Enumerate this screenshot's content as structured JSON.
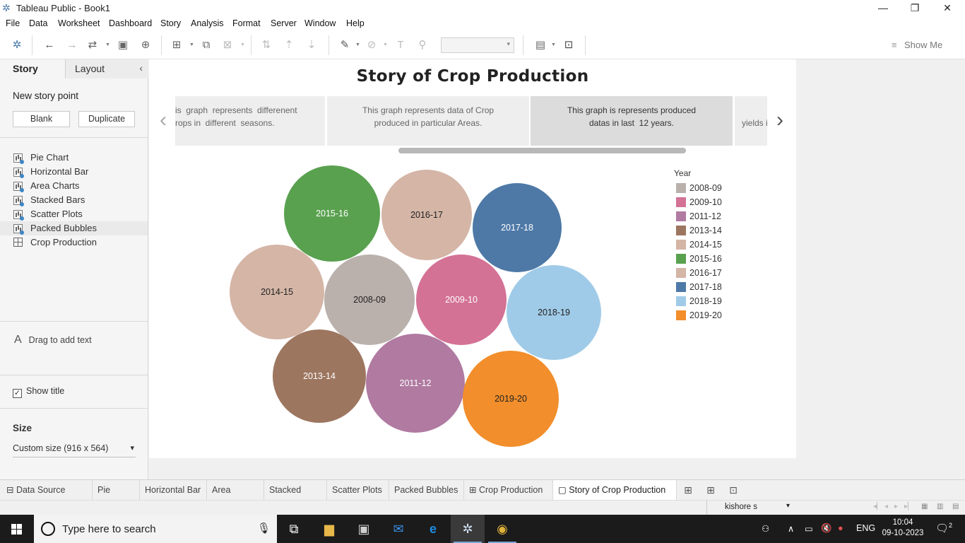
{
  "window": {
    "title": "Tableau Public - Book1",
    "minimize": "—",
    "restore": "❐",
    "close": "✕"
  },
  "menu": [
    "File",
    "Data",
    "Worksheet",
    "Dashboard",
    "Story",
    "Analysis",
    "Format",
    "Server",
    "Window",
    "Help"
  ],
  "toolbar": {
    "show_me": "Show Me"
  },
  "left_pane": {
    "tab_story": "Story",
    "tab_layout": "Layout",
    "new_story_point": "New story point",
    "blank_button": "Blank",
    "duplicate_button": "Duplicate",
    "sheets": [
      {
        "label": "Pie Chart",
        "type": "sheet"
      },
      {
        "label": "Horizontal Bar",
        "type": "sheet"
      },
      {
        "label": "Area Charts",
        "type": "sheet"
      },
      {
        "label": "Stacked Bars",
        "type": "sheet"
      },
      {
        "label": "Scatter Plots",
        "type": "sheet"
      },
      {
        "label": "Packed Bubbles",
        "type": "sheet"
      },
      {
        "label": "Crop Production",
        "type": "dashboard"
      }
    ],
    "drag_text": "Drag to add text",
    "show_title": "Show title",
    "size_heading": "Size",
    "size_value": "Custom size (916 x 564)"
  },
  "story": {
    "title": "Story of  Crop Production",
    "points": [
      "is  graph  represents  differenent\nrops in  different  seasons.",
      "This graph represents data of Crop\nproduced in particular Areas.",
      "This graph is represents produced\ndatas in last  12 years.",
      "yields i"
    ],
    "current_point_index": 2
  },
  "chart_data": {
    "type": "packed-bubbles",
    "legend_title": "Year",
    "bubbles": [
      {
        "label": "2015-16",
        "color": "#59a14f",
        "text_color": "#ffffff"
      },
      {
        "label": "2016-17",
        "color": "#d4b5a6",
        "text_color": "#222222"
      },
      {
        "label": "2017-18",
        "color": "#4e79a7",
        "text_color": "#ffffff"
      },
      {
        "label": "2014-15",
        "color": "#d4b5a6",
        "text_color": "#222222"
      },
      {
        "label": "2008-09",
        "color": "#bab0ac",
        "text_color": "#222222"
      },
      {
        "label": "2009-10",
        "color": "#d37295",
        "text_color": "#ffffff"
      },
      {
        "label": "2018-19",
        "color": "#a0cbe8",
        "text_color": "#222222"
      },
      {
        "label": "2013-14",
        "color": "#9d7660",
        "text_color": "#ffffff"
      },
      {
        "label": "2011-12",
        "color": "#b07aa1",
        "text_color": "#ffffff"
      },
      {
        "label": "2019-20",
        "color": "#f28e2b",
        "text_color": "#222222"
      }
    ],
    "legend": [
      {
        "label": "2008-09",
        "color": "#bab0ac"
      },
      {
        "label": "2009-10",
        "color": "#d37295"
      },
      {
        "label": "2011-12",
        "color": "#b07aa1"
      },
      {
        "label": "2013-14",
        "color": "#9d7660"
      },
      {
        "label": "2014-15",
        "color": "#d4b5a6"
      },
      {
        "label": "2015-16",
        "color": "#59a14f"
      },
      {
        "label": "2016-17",
        "color": "#d4b5a6"
      },
      {
        "label": "2017-18",
        "color": "#4e79a7"
      },
      {
        "label": "2018-19",
        "color": "#a0cbe8"
      },
      {
        "label": "2019-20",
        "color": "#f28e2b"
      }
    ]
  },
  "sheet_tabs": [
    "Data Source",
    "Pie Chart",
    "Horizontal Bar",
    "Area Charts",
    "Stacked Bars",
    "Scatter Plots",
    "Packed Bubbles",
    "Crop Production",
    "Story of Crop Production"
  ],
  "active_sheet_tab": "Story of Crop Production",
  "status": {
    "user": "kishore s"
  },
  "taskbar": {
    "search_placeholder": "Type here to search",
    "lang": "ENG",
    "time": "10:04",
    "date": "09-10-2023",
    "notifications": "2"
  }
}
